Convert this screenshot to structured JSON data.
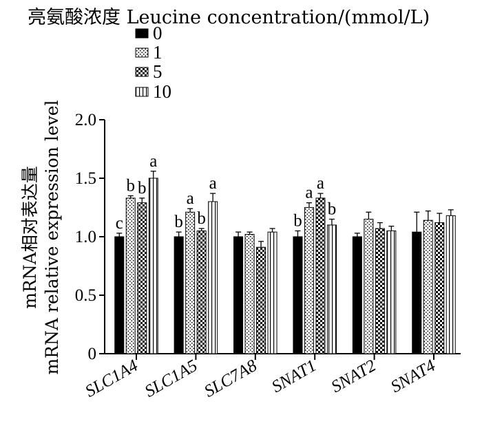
{
  "chart_data": {
    "type": "bar",
    "legend_title": "亮氨酸浓度  Leucine concentration/(mmol/L)",
    "ylabel_cn": "mRNA相对表达量",
    "ylabel_en": "mRNA relative expression level",
    "xlabel": "",
    "ylim": [
      0,
      2.0
    ],
    "yticks": [
      "0",
      "0.5",
      "1.0",
      "1.5",
      "2.0"
    ],
    "ytick_values": [
      0,
      0.5,
      1.0,
      1.5,
      2.0
    ],
    "legend_position": "top-left",
    "grid": false,
    "categories": [
      "SLC1A4",
      "SLC1A5",
      "SLC7A8",
      "SNAT1",
      "SNAT2",
      "SNAT4"
    ],
    "series": [
      {
        "name": "0",
        "pattern": "solid",
        "values": [
          1.0,
          1.0,
          1.0,
          1.0,
          1.0,
          1.04
        ],
        "errors": [
          0.03,
          0.04,
          0.04,
          0.05,
          0.03,
          0.17
        ],
        "labels": [
          "c",
          "b",
          "",
          "b",
          "",
          ""
        ]
      },
      {
        "name": "1",
        "pattern": "dots",
        "values": [
          1.33,
          1.21,
          1.02,
          1.25,
          1.15,
          1.14
        ],
        "errors": [
          0.02,
          0.03,
          0.02,
          0.04,
          0.06,
          0.08
        ],
        "labels": [
          "b",
          "a",
          "",
          "a",
          "",
          ""
        ]
      },
      {
        "name": "5",
        "pattern": "checker",
        "values": [
          1.29,
          1.05,
          0.91,
          1.33,
          1.07,
          1.12
        ],
        "errors": [
          0.04,
          0.02,
          0.05,
          0.04,
          0.05,
          0.08
        ],
        "labels": [
          "b",
          "b",
          "",
          "a",
          "",
          ""
        ]
      },
      {
        "name": "10",
        "pattern": "vlines",
        "values": [
          1.5,
          1.3,
          1.04,
          1.1,
          1.05,
          1.18
        ],
        "errors": [
          0.06,
          0.07,
          0.03,
          0.05,
          0.04,
          0.05
        ],
        "labels": [
          "a",
          "a",
          "",
          "b",
          "",
          ""
        ]
      }
    ]
  }
}
